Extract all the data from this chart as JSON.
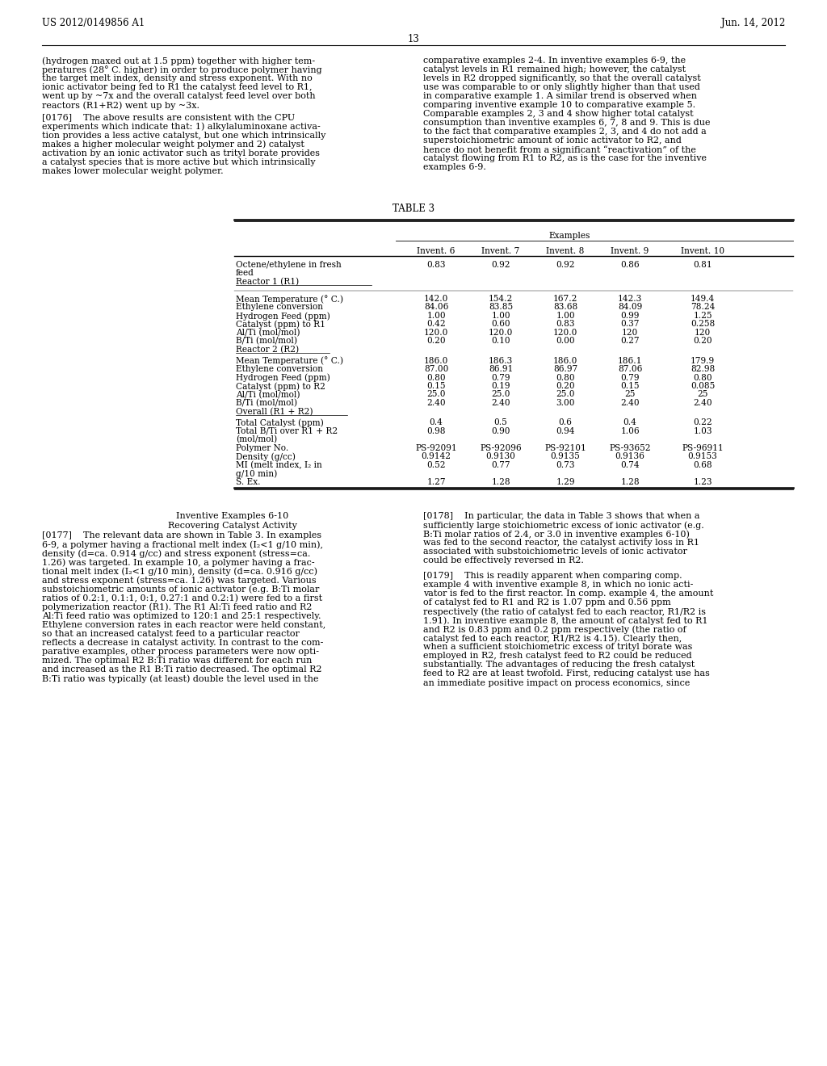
{
  "page_header_left": "US 2012/0149856 A1",
  "page_header_right": "Jun. 14, 2012",
  "page_number": "13",
  "background_color": "#ffffff",
  "text_color": "#000000",
  "left_col_paragraphs": [
    "(hydrogen maxed out at 1.5 ppm) together with higher tem-\nperatures (28° C. higher) in order to produce polymer having\nthe target melt index, density and stress exponent. With no\nionic activator being fed to R1 the catalyst feed level to R1,\nwent up by ~7x and the overall catalyst feed level over both\nreactors (R1+R2) went up by ~3x.",
    "[0176]    The above results are consistent with the CPU\nexperiments which indicate that: 1) alkylaluminoxane activa-\ntion provides a less active catalyst, but one which intrinsically\nmakes a higher molecular weight polymer and 2) catalyst\nactivation by an ionic activator such as trityl borate provides\na catalyst species that is more active but which intrinsically\nmakes lower molecular weight polymer."
  ],
  "right_col_paragraphs": [
    "comparative examples 2-4. In inventive examples 6-9, the\ncatalyst levels in R1 remained high; however, the catalyst\nlevels in R2 dropped significantly, so that the overall catalyst\nuse was comparable to or only slightly higher than that used\nin comparative example 1. A similar trend is observed when\ncomparing inventive example 10 to comparative example 5.\nComparable examples 2, 3 and 4 show higher total catalyst\nconsumption than inventive examples 6, 7, 8 and 9. This is due\nto the fact that comparative examples 2, 3, and 4 do not add a\nsuperstoichiometric amount of ionic activator to R2, and\nhence do not benefit from a significant “reactivation” of the\ncatalyst flowing from R1 to R2, as is the case for the inventive\nexamples 6-9."
  ],
  "table_title": "TABLE 3",
  "col_headers": [
    "Invent. 6",
    "Invent. 7",
    "Invent. 8",
    "Invent. 9",
    "Invent. 10"
  ],
  "section1_label_lines": [
    "Octene/ethylene in fresh",
    "feed",
    "Reactor 1 (R1)"
  ],
  "section1_values": [
    "0.83",
    "0.92",
    "0.92",
    "0.86",
    "0.81"
  ],
  "r1_rows": [
    [
      "Mean Temperature (° C.)",
      "142.0",
      "154.2",
      "167.2",
      "142.3",
      "149.4"
    ],
    [
      "Ethylene conversion",
      "84.06",
      "83.85",
      "83.68",
      "84.09",
      "78.24"
    ],
    [
      "Hydrogen Feed (ppm)",
      "1.00",
      "1.00",
      "1.00",
      "0.99",
      "1.25"
    ],
    [
      "Catalyst (ppm) to R1",
      "0.42",
      "0.60",
      "0.83",
      "0.37",
      "0.258"
    ],
    [
      "Al/Ti (mol/mol)",
      "120.0",
      "120.0",
      "120.0",
      "120",
      "120"
    ],
    [
      "B/Ti (mol/mol)",
      "0.20",
      "0.10",
      "0.00",
      "0.27",
      "0.20"
    ]
  ],
  "r1_section_footer": "Reactor 2 (R2)",
  "r2_rows": [
    [
      "Mean Temperature (° C.)",
      "186.0",
      "186.3",
      "186.0",
      "186.1",
      "179.9"
    ],
    [
      "Ethylene conversion",
      "87.00",
      "86.91",
      "86.97",
      "87.06",
      "82.98"
    ],
    [
      "Hydrogen Feed (ppm)",
      "0.80",
      "0.79",
      "0.80",
      "0.79",
      "0.80"
    ],
    [
      "Catalyst (ppm) to R2",
      "0.15",
      "0.19",
      "0.20",
      "0.15",
      "0.085"
    ],
    [
      "Al/Ti (mol/mol)",
      "25.0",
      "25.0",
      "25.0",
      "25",
      "25"
    ],
    [
      "B/Ti (mol/mol)",
      "2.40",
      "2.40",
      "3.00",
      "2.40",
      "2.40"
    ]
  ],
  "r2_section_footer": "Overall (R1 + R2)",
  "overall_rows": [
    [
      "Total Catalyst (ppm)",
      "0.4",
      "0.5",
      "0.6",
      "0.4",
      "0.22"
    ],
    [
      "Total B/Ti over R1 + R2",
      "0.98",
      "0.90",
      "0.94",
      "1.06",
      "1.03"
    ],
    [
      "(mol/mol)",
      "",
      "",
      "",
      "",
      ""
    ],
    [
      "Polymer No.",
      "PS-92091",
      "PS-92096",
      "PS-92101",
      "PS-93652",
      "PS-96911"
    ],
    [
      "Density (g/cc)",
      "0.9142",
      "0.9130",
      "0.9135",
      "0.9136",
      "0.9153"
    ],
    [
      "MI (melt index, I₂ in",
      "0.52",
      "0.77",
      "0.73",
      "0.74",
      "0.68"
    ],
    [
      "g/10 min)",
      "",
      "",
      "",
      "",
      ""
    ],
    [
      "S. Ex.",
      "1.27",
      "1.28",
      "1.29",
      "1.28",
      "1.23"
    ]
  ],
  "bottom_left_heading1": "Inventive Examples 6-10",
  "bottom_left_heading2": "Recovering Catalyst Activity",
  "bottom_left_para": "[0177]    The relevant data are shown in Table 3. In examples\n6-9, a polymer having a fractional melt index (I₂<1 g/10 min),\ndensity (d=ca. 0.914 g/cc) and stress exponent (stress=ca.\n1.26) was targeted. In example 10, a polymer having a frac-\ntional melt index (I₂<1 g/10 min), density (d=ca. 0.916 g/cc)\nand stress exponent (stress=ca. 1.26) was targeted. Various\nsubstoichiometric amounts of ionic activator (e.g. B:Ti molar\nratios of 0.2:1, 0.1:1, 0:1, 0.27:1 and 0.2:1) were fed to a first\npolymerization reactor (R1). The R1 Al:Ti feed ratio and R2\nAl:Ti feed ratio was optimized to 120:1 and 25:1 respectively.\nEthylene conversion rates in each reactor were held constant,\nso that an increased catalyst feed to a particular reactor\nreflects a decrease in catalyst activity. In contrast to the com-\nparative examples, other process parameters were now opti-\nmized. The optimal R2 B:Ti ratio was different for each run\nand increased as the R1 B:Ti ratio decreased. The optimal R2\nB:Ti ratio was typically (at least) double the level used in the",
  "bottom_right_paras": [
    "[0178]    In particular, the data in Table 3 shows that when a\nsufficiently large stoichiometric excess of ionic activator (e.g.\nB:Ti molar ratios of 2.4, or 3.0 in inventive examples 6-10)\nwas fed to the second reactor, the catalyst activity loss in R1\nassociated with substoichiometric levels of ionic activator\ncould be effectively reversed in R2.",
    "[0179]    This is readily apparent when comparing comp.\nexample 4 with inventive example 8, in which no ionic acti-\nvator is fed to the first reactor. In comp. example 4, the amount\nof catalyst fed to R1 and R2 is 1.07 ppm and 0.56 ppm\nrespectively (the ratio of catalyst fed to each reactor, R1/R2 is\n1.91). In inventive example 8, the amount of catalyst fed to R1\nand R2 is 0.83 ppm and 0.2 ppm respectively (the ratio of\ncatalyst fed to each reactor, R1/R2 is 4.15). Clearly then,\nwhen a sufficient stoichiometric excess of trityl borate was\nemployed in R2, fresh catalyst feed to R2 could be reduced\nsubstantially. The advantages of reducing the fresh catalyst\nfeed to R2 are at least twofold. First, reducing catalyst use has\nan immediate positive impact on process economics, since"
  ]
}
